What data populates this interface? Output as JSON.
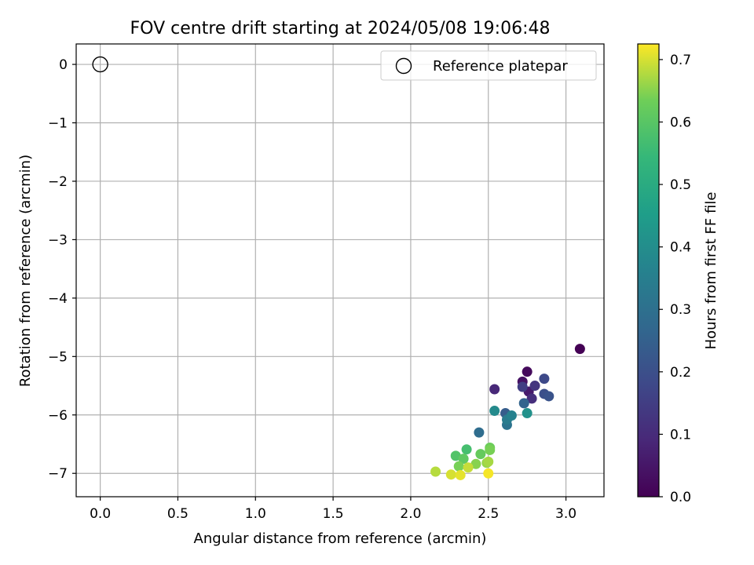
{
  "chart_data": {
    "type": "scatter",
    "title": "FOV centre drift starting at 2024/05/08 19:06:48",
    "xlabel": "Angular distance from reference (arcmin)",
    "ylabel": "Rotation from reference (arcmin)",
    "xlim": [
      -0.155,
      3.245
    ],
    "ylim": [
      -7.4,
      0.35
    ],
    "xticks": [
      0.0,
      0.5,
      1.0,
      1.5,
      2.0,
      2.5,
      3.0
    ],
    "xtick_labels": [
      "0.0",
      "0.5",
      "1.0",
      "1.5",
      "2.0",
      "2.5",
      "3.0"
    ],
    "yticks": [
      0,
      -1,
      -2,
      -3,
      -4,
      -5,
      -6,
      -7
    ],
    "ytick_labels": [
      "0",
      "−1",
      "−2",
      "−3",
      "−4",
      "−5",
      "−6",
      "−7"
    ],
    "grid": true,
    "legend": {
      "position": "top-right",
      "entries": [
        "Reference platepar"
      ]
    },
    "reference_point": {
      "x": 0.0,
      "y": 0.0,
      "name": "Reference platepar"
    },
    "colorbar": {
      "label": "Hours from first FF file",
      "colormap": "viridis",
      "range": [
        0.0,
        0.725
      ],
      "ticks": [
        0.0,
        0.1,
        0.2,
        0.3,
        0.4,
        0.5,
        0.6,
        0.7
      ],
      "tick_labels": [
        "0.0",
        "0.1",
        "0.2",
        "0.3",
        "0.4",
        "0.5",
        "0.6",
        "0.7"
      ]
    },
    "points": [
      {
        "x": 3.09,
        "y": -4.87,
        "c": 0.0
      },
      {
        "x": 2.75,
        "y": -5.26,
        "c": 0.02
      },
      {
        "x": 2.72,
        "y": -5.43,
        "c": 0.04
      },
      {
        "x": 2.76,
        "y": -5.6,
        "c": 0.06
      },
      {
        "x": 2.54,
        "y": -5.56,
        "c": 0.09
      },
      {
        "x": 2.78,
        "y": -5.72,
        "c": 0.11
      },
      {
        "x": 2.8,
        "y": -5.5,
        "c": 0.13
      },
      {
        "x": 2.72,
        "y": -5.52,
        "c": 0.15
      },
      {
        "x": 2.86,
        "y": -5.38,
        "c": 0.18
      },
      {
        "x": 2.86,
        "y": -5.64,
        "c": 0.2
      },
      {
        "x": 2.89,
        "y": -5.68,
        "c": 0.21
      },
      {
        "x": 2.61,
        "y": -5.97,
        "c": 0.24
      },
      {
        "x": 2.73,
        "y": -5.8,
        "c": 0.26
      },
      {
        "x": 2.44,
        "y": -6.3,
        "c": 0.29
      },
      {
        "x": 2.62,
        "y": -6.17,
        "c": 0.31
      },
      {
        "x": 2.62,
        "y": -6.08,
        "c": 0.34
      },
      {
        "x": 2.65,
        "y": -6.01,
        "c": 0.36
      },
      {
        "x": 2.54,
        "y": -5.93,
        "c": 0.39
      },
      {
        "x": 2.75,
        "y": -5.97,
        "c": 0.41
      },
      {
        "x": 2.36,
        "y": -6.59,
        "c": 0.57
      },
      {
        "x": 2.29,
        "y": -6.7,
        "c": 0.59
      },
      {
        "x": 2.34,
        "y": -6.75,
        "c": 0.61
      },
      {
        "x": 2.45,
        "y": -6.67,
        "c": 0.62
      },
      {
        "x": 2.51,
        "y": -6.56,
        "c": 0.63
      },
      {
        "x": 2.51,
        "y": -6.6,
        "c": 0.64
      },
      {
        "x": 2.31,
        "y": -6.88,
        "c": 0.64
      },
      {
        "x": 2.42,
        "y": -6.84,
        "c": 0.65
      },
      {
        "x": 2.49,
        "y": -6.82,
        "c": 0.66
      },
      {
        "x": 2.5,
        "y": -6.8,
        "c": 0.67
      },
      {
        "x": 2.16,
        "y": -6.97,
        "c": 0.68
      },
      {
        "x": 2.37,
        "y": -6.9,
        "c": 0.69
      },
      {
        "x": 2.26,
        "y": -7.02,
        "c": 0.7
      },
      {
        "x": 2.32,
        "y": -7.03,
        "c": 0.71
      },
      {
        "x": 2.5,
        "y": -7.0,
        "c": 0.72
      }
    ]
  }
}
